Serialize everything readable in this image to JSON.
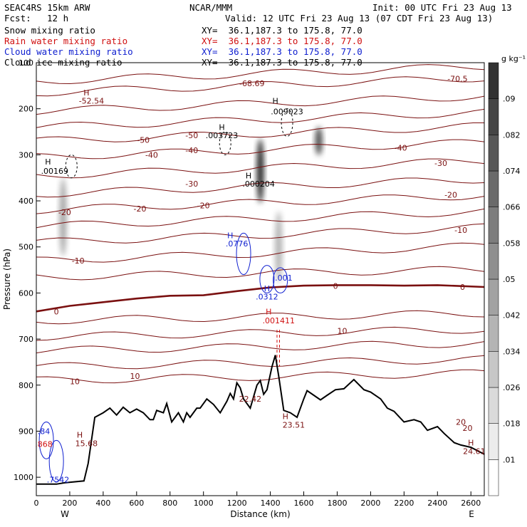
{
  "header": {
    "model": "SEAC4RS 15km ARW",
    "org": "NCAR/MMM",
    "init": "Init: 00 UTC Fri 23 Aug 13",
    "fcst_label": "Fcst:",
    "fcst_value": "12 h",
    "valid": "Valid: 12 UTC Fri 23 Aug 13 (07 CDT Fri 23 Aug 13)",
    "fields": [
      {
        "name": "Snow mixing ratio",
        "xy": "XY=  36.1,187.3 to 175.8, 77.0"
      },
      {
        "name": "Rain water mixing ratio",
        "xy": "XY=  36.1,187.3 to 175.8, 77.0"
      },
      {
        "name": "Cloud water mixing ratio",
        "xy": "XY=  36.1,187.3 to 175.8, 77.0"
      },
      {
        "name": "Cloud ice mixing ratio",
        "xy": "XY=  36.1,187.3 to 175.8, 77.0"
      }
    ]
  },
  "colors": {
    "snow": "#000000",
    "rain": "#d01010",
    "cloud": "#1020d0",
    "temp": "#7a1010",
    "ice": "#000000"
  },
  "chart_data": {
    "type": "cross-section",
    "xlabel": "Distance (km)",
    "ylabel": "Pressure (hPa)",
    "xlim": [
      0,
      2680
    ],
    "ylim": [
      1040,
      100
    ],
    "x_ticks": [
      0,
      200,
      400,
      600,
      800,
      1000,
      1200,
      1400,
      1600,
      1800,
      2000,
      2200,
      2400,
      2600
    ],
    "y_ticks": [
      200,
      300,
      400,
      500,
      600,
      700,
      800,
      900,
      1000
    ],
    "y_top_label": "100",
    "endpoints": {
      "left": "W",
      "right": "E"
    },
    "colorbar": {
      "unit": "g kg⁻¹",
      "labels": [
        ".01",
        ".018",
        ".026",
        ".034",
        ".042",
        ".05",
        ".058",
        ".066",
        ".074",
        ".082",
        ".09"
      ]
    },
    "terrain": [
      [
        0,
        1015
      ],
      [
        120,
        1015
      ],
      [
        170,
        1012
      ],
      [
        285,
        1008
      ],
      [
        310,
        970
      ],
      [
        350,
        870
      ],
      [
        400,
        860
      ],
      [
        440,
        850
      ],
      [
        480,
        865
      ],
      [
        520,
        848
      ],
      [
        560,
        860
      ],
      [
        600,
        852
      ],
      [
        640,
        860
      ],
      [
        680,
        875
      ],
      [
        700,
        875
      ],
      [
        720,
        855
      ],
      [
        760,
        860
      ],
      [
        780,
        840
      ],
      [
        810,
        880
      ],
      [
        850,
        860
      ],
      [
        880,
        880
      ],
      [
        900,
        860
      ],
      [
        920,
        870
      ],
      [
        960,
        850
      ],
      [
        980,
        850
      ],
      [
        1020,
        830
      ],
      [
        1060,
        842
      ],
      [
        1100,
        860
      ],
      [
        1140,
        835
      ],
      [
        1160,
        818
      ],
      [
        1180,
        830
      ],
      [
        1200,
        795
      ],
      [
        1220,
        806
      ],
      [
        1240,
        830
      ],
      [
        1280,
        850
      ],
      [
        1320,
        800
      ],
      [
        1340,
        790
      ],
      [
        1360,
        820
      ],
      [
        1380,
        810
      ],
      [
        1410,
        760
      ],
      [
        1430,
        735
      ],
      [
        1450,
        780
      ],
      [
        1480,
        855
      ],
      [
        1520,
        860
      ],
      [
        1560,
        870
      ],
      [
        1600,
        830
      ],
      [
        1620,
        812
      ],
      [
        1660,
        822
      ],
      [
        1700,
        832
      ],
      [
        1740,
        822
      ],
      [
        1790,
        810
      ],
      [
        1840,
        808
      ],
      [
        1900,
        788
      ],
      [
        1960,
        810
      ],
      [
        2000,
        815
      ],
      [
        2060,
        830
      ],
      [
        2100,
        850
      ],
      [
        2140,
        857
      ],
      [
        2200,
        880
      ],
      [
        2260,
        875
      ],
      [
        2300,
        880
      ],
      [
        2340,
        898
      ],
      [
        2400,
        890
      ],
      [
        2440,
        905
      ],
      [
        2500,
        925
      ],
      [
        2540,
        930
      ],
      [
        2600,
        935
      ],
      [
        2680,
        950
      ]
    ],
    "freezing_level": [
      [
        0,
        640
      ],
      [
        200,
        628
      ],
      [
        400,
        620
      ],
      [
        600,
        612
      ],
      [
        800,
        606
      ],
      [
        1000,
        605
      ],
      [
        1200,
        596
      ],
      [
        1400,
        588
      ],
      [
        1600,
        584
      ],
      [
        1800,
        583
      ],
      [
        2000,
        583
      ],
      [
        2200,
        584
      ],
      [
        2400,
        583
      ],
      [
        2680,
        587
      ]
    ],
    "isotherm_labels": [
      {
        "text": "-70.5",
        "x": 2520,
        "y": 135
      },
      {
        "text": "-68.69",
        "x": 1290,
        "y": 145
      },
      {
        "text": "-52.54",
        "x": 330,
        "y": 183
      },
      {
        "text": "-50",
        "x": 640,
        "y": 268
      },
      {
        "text": "-50",
        "x": 930,
        "y": 258
      },
      {
        "text": "-40",
        "x": 690,
        "y": 300
      },
      {
        "text": "-40",
        "x": 930,
        "y": 290
      },
      {
        "text": "-40",
        "x": 2180,
        "y": 285
      },
      {
        "text": "-30",
        "x": 930,
        "y": 363
      },
      {
        "text": "-30",
        "x": 2420,
        "y": 318
      },
      {
        "text": "-20",
        "x": 170,
        "y": 425
      },
      {
        "text": "-20",
        "x": 620,
        "y": 417
      },
      {
        "text": "-20",
        "x": 1000,
        "y": 410
      },
      {
        "text": "-20",
        "x": 2480,
        "y": 387
      },
      {
        "text": "-10",
        "x": 250,
        "y": 530
      },
      {
        "text": "-10",
        "x": 2540,
        "y": 463
      },
      {
        "text": "0",
        "x": 120,
        "y": 640
      },
      {
        "text": "0",
        "x": 1790,
        "y": 585
      },
      {
        "text": "0",
        "x": 2550,
        "y": 587
      },
      {
        "text": "10",
        "x": 1830,
        "y": 682
      },
      {
        "text": "10",
        "x": 230,
        "y": 792
      },
      {
        "text": "10",
        "x": 590,
        "y": 780
      },
      {
        "text": "20",
        "x": 2540,
        "y": 880
      },
      {
        "text": "20",
        "x": 2580,
        "y": 893
      }
    ],
    "extrema": [
      {
        "text": "H",
        "x": 300,
        "y": 165,
        "color": "temp"
      },
      {
        "text": "H",
        "x": 1430,
        "y": 183,
        "color": "snow"
      },
      {
        "text": ".009023",
        "x": 1500,
        "y": 206,
        "color": "snow"
      },
      {
        "text": "H",
        "x": 1110,
        "y": 240,
        "color": "snow"
      },
      {
        "text": ".003723",
        "x": 1110,
        "y": 258,
        "color": "snow"
      },
      {
        "text": "H",
        "x": 70,
        "y": 315,
        "color": "snow"
      },
      {
        "text": ".00169",
        "x": 110,
        "y": 335,
        "color": "snow"
      },
      {
        "text": "H",
        "x": 1270,
        "y": 345,
        "color": "snow"
      },
      {
        "text": ".000204",
        "x": 1330,
        "y": 363,
        "color": "snow"
      },
      {
        "text": "H",
        "x": 1160,
        "y": 475,
        "color": "cloud"
      },
      {
        "text": ".0776",
        "x": 1200,
        "y": 493,
        "color": "cloud"
      },
      {
        "text": ".001",
        "x": 1480,
        "y": 567,
        "color": "cloud"
      },
      {
        "text": "H",
        "x": 1380,
        "y": 590,
        "color": "cloud"
      },
      {
        "text": ".0312",
        "x": 1380,
        "y": 608,
        "color": "cloud"
      },
      {
        "text": "H",
        "x": 1390,
        "y": 640,
        "color": "rain"
      },
      {
        "text": ".001411",
        "x": 1450,
        "y": 660,
        "color": "rain"
      },
      {
        "text": "22.42",
        "x": 1280,
        "y": 830,
        "color": "temp"
      },
      {
        "text": "H",
        "x": 1490,
        "y": 868,
        "color": "temp"
      },
      {
        "text": "23.51",
        "x": 1540,
        "y": 886,
        "color": "temp"
      },
      {
        "text": "H",
        "x": 260,
        "y": 908,
        "color": "temp"
      },
      {
        "text": "15.68",
        "x": 300,
        "y": 926,
        "color": "temp"
      },
      {
        "text": "H",
        "x": 2600,
        "y": 925,
        "color": "temp"
      },
      {
        "text": "24.61",
        "x": 2620,
        "y": 943,
        "color": "temp"
      },
      {
        "text": ".84",
        "x": 45,
        "y": 900,
        "color": "cloud"
      },
      {
        "text": ".868",
        "x": 45,
        "y": 928,
        "color": "rain"
      },
      {
        "text": ".7542",
        "x": 130,
        "y": 1005,
        "color": "cloud"
      }
    ]
  }
}
